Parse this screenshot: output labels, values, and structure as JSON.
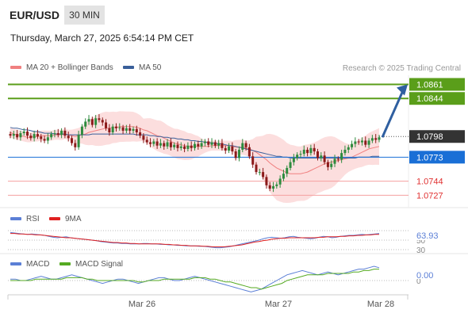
{
  "header": {
    "pair": "EUR/USD",
    "timeframe": "30 MIN",
    "datetime": "Thursday, March 27, 2025 6:54:14 PM CET"
  },
  "legend": {
    "ma20": "MA 20 + Bollinger Bands",
    "ma50": "MA 50",
    "credit": "Research © 2025 Trading Central",
    "rsi": "RSI",
    "rsi_ma": "9MA",
    "macd": "MACD",
    "macd_signal": "MACD Signal"
  },
  "colors": {
    "ma20": "#f08080",
    "ma50": "#3a5f9a",
    "green_level": "#5a9e1a",
    "blue_level": "#1a6fd6",
    "red_level": "#e03030",
    "current": "#333333",
    "rsi": "#5b7fd6",
    "rsi_ma": "#e02020",
    "macd": "#5b7fd6",
    "macd_signal": "#55aa22",
    "arrow": "#2f5fa0"
  },
  "chart_data": [
    {
      "type": "candlestick",
      "title": "EUR/USD",
      "x_labels": [
        "Mar 26",
        "Mar 27",
        "Mar 28"
      ],
      "ylim": [
        1.0712,
        1.0872
      ],
      "levels": [
        {
          "label": "1.0861",
          "value": 1.0861,
          "kind": "resistance"
        },
        {
          "label": "1.0844",
          "value": 1.0844,
          "kind": "resistance"
        },
        {
          "label": "1.0798",
          "value": 1.0798,
          "kind": "current"
        },
        {
          "label": "1.0773",
          "value": 1.0773,
          "kind": "pivot"
        },
        {
          "label": "1.0744",
          "value": 1.0744,
          "kind": "support"
        },
        {
          "label": "1.0727",
          "value": 1.0727,
          "kind": "support"
        }
      ],
      "close": [
        1.0799,
        1.0801,
        1.0797,
        1.0802,
        1.0804,
        1.0799,
        1.0796,
        1.0801,
        1.0798,
        1.0795,
        1.0793,
        1.0797,
        1.0801,
        1.0802,
        1.08,
        1.0805,
        1.0799,
        1.0796,
        1.079,
        1.0785,
        1.08,
        1.081,
        1.0816,
        1.0819,
        1.0812,
        1.082,
        1.0818,
        1.0815,
        1.0808,
        1.0803,
        1.081,
        1.0808,
        1.0809,
        1.0805,
        1.0808,
        1.0805,
        1.0807,
        1.0803,
        1.0799,
        1.0794,
        1.0791,
        1.0789,
        1.0792,
        1.0787,
        1.079,
        1.0786,
        1.0791,
        1.0785,
        1.0788,
        1.0784,
        1.0786,
        1.0783,
        1.0787,
        1.0784,
        1.0789,
        1.0786,
        1.079,
        1.0792,
        1.0788,
        1.0791,
        1.0787,
        1.079,
        1.0784,
        1.0781,
        1.0786,
        1.078,
        1.0772,
        1.0782,
        1.079,
        1.0785,
        1.0774,
        1.0764,
        1.0755,
        1.0755,
        1.0749,
        1.0739,
        1.0735,
        1.0738,
        1.074,
        1.0747,
        1.0753,
        1.076,
        1.0767,
        1.0772,
        1.0776,
        1.0777,
        1.0782,
        1.0778,
        1.0784,
        1.078,
        1.0772,
        1.0775,
        1.0767,
        1.0761,
        1.0765,
        1.0771,
        1.077,
        1.0778,
        1.0782,
        1.0785,
        1.0789,
        1.0792,
        1.0791,
        1.0793,
        1.0788,
        1.0793,
        1.0796,
        1.0794,
        1.0797
      ],
      "ma20": [
        1.0803,
        1.0801,
        1.08,
        1.0799,
        1.0798,
        1.0797,
        1.0797,
        1.0798,
        1.0798,
        1.0799,
        1.0799,
        1.0799,
        1.0799,
        1.08,
        1.08,
        1.08,
        1.0801,
        1.08,
        1.0799,
        1.0798,
        1.0799,
        1.08,
        1.0801,
        1.0803,
        1.0804,
        1.0805,
        1.0806,
        1.0807,
        1.0808,
        1.0808,
        1.0809,
        1.0809,
        1.081,
        1.081,
        1.081,
        1.081,
        1.081,
        1.0809,
        1.0808,
        1.0806,
        1.0805,
        1.0803,
        1.0801,
        1.0799,
        1.0798,
        1.0796,
        1.0794,
        1.0792,
        1.079,
        1.0789,
        1.0788,
        1.0787,
        1.0786,
        1.0786,
        1.0786,
        1.0786,
        1.0786,
        1.0786,
        1.0786,
        1.0787,
        1.0787,
        1.0787,
        1.0787,
        1.0787,
        1.0787,
        1.0786,
        1.0785,
        1.0785,
        1.0785,
        1.0784,
        1.0783,
        1.0781,
        1.0779,
        1.0776,
        1.0773,
        1.077,
        1.0766,
        1.0763,
        1.076,
        1.0758,
        1.0756,
        1.0754,
        1.0753,
        1.0753,
        1.0753,
        1.0753,
        1.0754,
        1.0755,
        1.0757,
        1.0759,
        1.0761,
        1.0763,
        1.0765,
        1.0766,
        1.0767,
        1.0768,
        1.0769,
        1.077,
        1.0771,
        1.0772,
        1.0773,
        1.0775,
        1.0777,
        1.0779,
        1.0781,
        1.0783,
        1.0784,
        1.0785,
        1.0786
      ],
      "ma50": [
        1.0809,
        1.0808,
        1.0808,
        1.0807,
        1.0806,
        1.0806,
        1.0805,
        1.0804,
        1.0804,
        1.0803,
        1.0802,
        1.0802,
        1.0802,
        1.0801,
        1.0801,
        1.0801,
        1.0801,
        1.08,
        1.08,
        1.08,
        1.08,
        1.08,
        1.08,
        1.08,
        1.0801,
        1.0801,
        1.0801,
        1.0801,
        1.0801,
        1.0801,
        1.0801,
        1.0801,
        1.0801,
        1.0801,
        1.0801,
        1.0801,
        1.0801,
        1.08,
        1.08,
        1.08,
        1.08,
        1.0799,
        1.0799,
        1.0798,
        1.0798,
        1.0797,
        1.0797,
        1.0796,
        1.0796,
        1.0795,
        1.0795,
        1.0794,
        1.0794,
        1.0793,
        1.0793,
        1.0792,
        1.0792,
        1.0791,
        1.0791,
        1.079,
        1.079,
        1.0789,
        1.0789,
        1.0788,
        1.0787,
        1.0787,
        1.0786,
        1.0785,
        1.0784,
        1.0783,
        1.0782,
        1.0781,
        1.078,
        1.0779,
        1.0778,
        1.0777,
        1.0776,
        1.0775,
        1.0774,
        1.0774,
        1.0773,
        1.0773,
        1.0772,
        1.0772,
        1.0772,
        1.0772,
        1.0772,
        1.0772,
        1.0772,
        1.0772,
        1.0772,
        1.0772,
        1.0772,
        1.0772,
        1.0772,
        1.0772,
        1.0772,
        1.0772,
        1.0772,
        1.0772,
        1.0772,
        1.0772,
        1.0773,
        1.0773,
        1.0773,
        1.0773,
        1.0774,
        1.0774,
        1.0774
      ]
    },
    {
      "type": "line",
      "title": "RSI",
      "y_tick_labels": [
        "50",
        "30"
      ],
      "last_value": "63.93",
      "series": [
        {
          "name": "RSI",
          "values": [
            66,
            65,
            64,
            63,
            62,
            63,
            62,
            61,
            60,
            58,
            56,
            55,
            56,
            57,
            55,
            54,
            53,
            52,
            51,
            50,
            49,
            47,
            46,
            45,
            44,
            44,
            43,
            43,
            42,
            42,
            42,
            43,
            43,
            42,
            42,
            41,
            41,
            40,
            40,
            39,
            39,
            38,
            38,
            38,
            37,
            37,
            36,
            35,
            34,
            34,
            35,
            36,
            38,
            40,
            42,
            44,
            46,
            48,
            50,
            53,
            55,
            56,
            55,
            54,
            55,
            57,
            58,
            56,
            55,
            54,
            53,
            54,
            56,
            58,
            57,
            55,
            56,
            58,
            59,
            60,
            60,
            61,
            62,
            61,
            62,
            63,
            64
          ]
        },
        {
          "name": "9MA",
          "values": [
            64,
            64,
            63,
            63,
            62,
            62,
            61,
            61,
            60,
            59,
            58,
            57,
            56,
            55,
            55,
            54,
            53,
            52,
            51,
            50,
            49,
            48,
            47,
            46,
            45,
            45,
            44,
            44,
            43,
            43,
            42,
            42,
            42,
            42,
            42,
            42,
            41,
            41,
            40,
            40,
            39,
            39,
            38,
            38,
            38,
            37,
            37,
            36,
            36,
            36,
            36,
            37,
            38,
            39,
            40,
            42,
            44,
            46,
            47,
            49,
            50,
            52,
            53,
            54,
            54,
            55,
            55,
            55,
            55,
            55,
            55,
            55,
            56,
            56,
            57,
            57,
            57,
            58,
            58,
            59,
            59,
            60,
            60,
            61,
            61,
            62,
            62
          ]
        }
      ]
    },
    {
      "type": "line",
      "title": "MACD",
      "y_tick_labels": [
        "0"
      ],
      "last_value": "0.00",
      "series": [
        {
          "name": "MACD",
          "values": [
            1,
            1,
            0,
            0,
            1,
            2,
            3,
            2,
            1,
            1,
            2,
            3,
            4,
            3,
            2,
            1,
            0,
            -1,
            -2,
            -1,
            0,
            1,
            1,
            0,
            -1,
            -2,
            -1,
            0,
            1,
            2,
            2,
            1,
            0,
            0,
            1,
            2,
            3,
            2,
            1,
            0,
            -1,
            -2,
            -3,
            -4,
            -5,
            -6,
            -7,
            -8,
            -7,
            -6,
            -4,
            -2,
            0,
            2,
            4,
            5,
            6,
            7,
            6,
            5,
            4,
            5,
            6,
            5,
            4,
            5,
            6,
            7,
            8,
            8,
            9,
            10,
            9
          ]
        },
        {
          "name": "MACD Signal",
          "values": [
            0,
            0,
            0,
            0,
            0,
            1,
            1,
            1,
            1,
            1,
            1,
            2,
            2,
            2,
            2,
            1,
            1,
            0,
            0,
            0,
            0,
            0,
            0,
            0,
            0,
            -1,
            -1,
            0,
            0,
            0,
            1,
            1,
            1,
            1,
            1,
            1,
            2,
            2,
            2,
            1,
            1,
            0,
            -1,
            -1,
            -2,
            -3,
            -4,
            -5,
            -5,
            -6,
            -5,
            -4,
            -3,
            -2,
            0,
            1,
            2,
            3,
            4,
            4,
            4,
            4,
            5,
            5,
            5,
            5,
            5,
            6,
            6,
            7,
            7,
            8,
            8
          ]
        }
      ]
    }
  ]
}
